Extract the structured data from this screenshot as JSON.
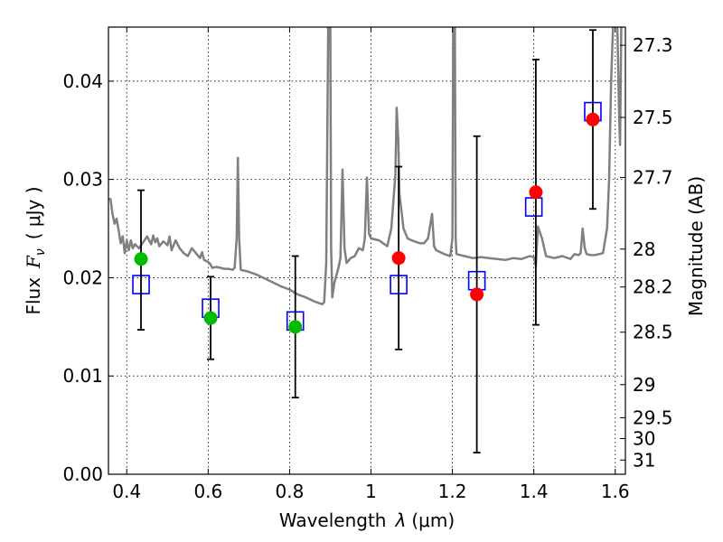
{
  "chart_data": {
    "type": "scatter",
    "xlabel_text": "Wavelength",
    "xlabel_symbol": "λ",
    "xlabel_unit": "(μm)",
    "ylabel_text": "Flux",
    "ylabel_symbol": "F",
    "ylabel_subscript": "ν",
    "ylabel_unit": "( μJy )",
    "y2label": "Magnitude (AB)",
    "xlim": [
      0.355,
      1.625
    ],
    "ylim": [
      0.0,
      0.0455
    ],
    "xticks": [
      0.4,
      0.6,
      0.8,
      1.0,
      1.2,
      1.4,
      1.6
    ],
    "xtick_labels": [
      "0.4",
      "0.6",
      "0.8",
      "1",
      "1.2",
      "1.4",
      "1.6"
    ],
    "yticks": [
      0.0,
      0.01,
      0.02,
      0.03,
      0.04
    ],
    "ytick_labels": [
      "0.00",
      "0.01",
      "0.02",
      "0.03",
      "0.04"
    ],
    "y2ticks": [
      {
        "mag": 27.3,
        "label": "27.3"
      },
      {
        "mag": 27.5,
        "label": "27.5"
      },
      {
        "mag": 27.7,
        "label": "27.7"
      },
      {
        "mag": 28,
        "label": "28"
      },
      {
        "mag": 28.2,
        "label": "28.2"
      },
      {
        "mag": 28.5,
        "label": "28.5"
      },
      {
        "mag": 29,
        "label": "29"
      },
      {
        "mag": 29.5,
        "label": "29.5"
      },
      {
        "mag": 30,
        "label": "30"
      },
      {
        "mag": 31,
        "label": "31"
      }
    ],
    "grid": true,
    "series": [
      {
        "name": "SED model",
        "kind": "line",
        "color": "#808080",
        "points": [
          [
            0.355,
            0.028
          ],
          [
            0.36,
            0.028
          ],
          [
            0.365,
            0.0265
          ],
          [
            0.37,
            0.0255
          ],
          [
            0.375,
            0.026
          ],
          [
            0.38,
            0.0248
          ],
          [
            0.385,
            0.0235
          ],
          [
            0.39,
            0.0242
          ],
          [
            0.395,
            0.0225
          ],
          [
            0.4,
            0.0238
          ],
          [
            0.405,
            0.0228
          ],
          [
            0.41,
            0.0238
          ],
          [
            0.415,
            0.023
          ],
          [
            0.42,
            0.0234
          ],
          [
            0.43,
            0.023
          ],
          [
            0.44,
            0.0236
          ],
          [
            0.45,
            0.0242
          ],
          [
            0.455,
            0.0238
          ],
          [
            0.46,
            0.0234
          ],
          [
            0.465,
            0.0243
          ],
          [
            0.47,
            0.0236
          ],
          [
            0.475,
            0.024
          ],
          [
            0.48,
            0.0232
          ],
          [
            0.49,
            0.0237
          ],
          [
            0.5,
            0.0233
          ],
          [
            0.505,
            0.0242
          ],
          [
            0.51,
            0.0228
          ],
          [
            0.52,
            0.0238
          ],
          [
            0.53,
            0.023
          ],
          [
            0.54,
            0.0225
          ],
          [
            0.55,
            0.0222
          ],
          [
            0.56,
            0.023
          ],
          [
            0.57,
            0.0225
          ],
          [
            0.58,
            0.022
          ],
          [
            0.585,
            0.0226
          ],
          [
            0.59,
            0.0218
          ],
          [
            0.6,
            0.0216
          ],
          [
            0.605,
            0.0214
          ],
          [
            0.61,
            0.021
          ],
          [
            0.62,
            0.0211
          ],
          [
            0.63,
            0.021
          ],
          [
            0.64,
            0.0209
          ],
          [
            0.65,
            0.0209
          ],
          [
            0.66,
            0.0208
          ],
          [
            0.665,
            0.021
          ],
          [
            0.67,
            0.024
          ],
          [
            0.673,
            0.0322
          ],
          [
            0.676,
            0.024
          ],
          [
            0.68,
            0.0208
          ],
          [
            0.7,
            0.0206
          ],
          [
            0.72,
            0.0203
          ],
          [
            0.74,
            0.0199
          ],
          [
            0.76,
            0.0195
          ],
          [
            0.78,
            0.0191
          ],
          [
            0.8,
            0.0188
          ],
          [
            0.82,
            0.0183
          ],
          [
            0.84,
            0.018
          ],
          [
            0.86,
            0.0176
          ],
          [
            0.88,
            0.0173
          ],
          [
            0.885,
            0.0175
          ],
          [
            0.89,
            0.0215
          ],
          [
            0.895,
            0.046
          ],
          [
            0.9,
            0.046
          ],
          [
            0.902,
            0.023
          ],
          [
            0.905,
            0.018
          ],
          [
            0.91,
            0.0195
          ],
          [
            0.92,
            0.021
          ],
          [
            0.925,
            0.022
          ],
          [
            0.93,
            0.031
          ],
          [
            0.935,
            0.023
          ],
          [
            0.94,
            0.0215
          ],
          [
            0.95,
            0.022
          ],
          [
            0.96,
            0.0222
          ],
          [
            0.97,
            0.023
          ],
          [
            0.98,
            0.0228
          ],
          [
            0.985,
            0.024
          ],
          [
            0.99,
            0.0302
          ],
          [
            0.995,
            0.0245
          ],
          [
            1.0,
            0.024
          ],
          [
            1.02,
            0.0238
          ],
          [
            1.04,
            0.0232
          ],
          [
            1.05,
            0.025
          ],
          [
            1.06,
            0.0305
          ],
          [
            1.063,
            0.0373
          ],
          [
            1.067,
            0.034
          ],
          [
            1.07,
            0.0285
          ],
          [
            1.08,
            0.025
          ],
          [
            1.09,
            0.024
          ],
          [
            1.1,
            0.0238
          ],
          [
            1.12,
            0.0235
          ],
          [
            1.13,
            0.0235
          ],
          [
            1.14,
            0.024
          ],
          [
            1.15,
            0.0265
          ],
          [
            1.155,
            0.0232
          ],
          [
            1.16,
            0.0228
          ],
          [
            1.18,
            0.0224
          ],
          [
            1.195,
            0.0222
          ],
          [
            1.2,
            0.024
          ],
          [
            1.202,
            0.046
          ],
          [
            1.206,
            0.046
          ],
          [
            1.208,
            0.024
          ],
          [
            1.21,
            0.0224
          ],
          [
            1.23,
            0.0222
          ],
          [
            1.25,
            0.022
          ],
          [
            1.27,
            0.0221
          ],
          [
            1.29,
            0.022
          ],
          [
            1.31,
            0.0219
          ],
          [
            1.33,
            0.0218
          ],
          [
            1.35,
            0.022
          ],
          [
            1.37,
            0.0219
          ],
          [
            1.39,
            0.0222
          ],
          [
            1.4,
            0.0221
          ],
          [
            1.405,
            0.0212
          ],
          [
            1.41,
            0.0252
          ],
          [
            1.42,
            0.024
          ],
          [
            1.43,
            0.0222
          ],
          [
            1.45,
            0.022
          ],
          [
            1.47,
            0.0222
          ],
          [
            1.49,
            0.0219
          ],
          [
            1.5,
            0.0224
          ],
          [
            1.51,
            0.0223
          ],
          [
            1.515,
            0.0225
          ],
          [
            1.52,
            0.025
          ],
          [
            1.525,
            0.023
          ],
          [
            1.53,
            0.0224
          ],
          [
            1.54,
            0.0223
          ],
          [
            1.55,
            0.0223
          ],
          [
            1.56,
            0.0224
          ],
          [
            1.57,
            0.0225
          ],
          [
            1.58,
            0.025
          ],
          [
            1.585,
            0.03
          ],
          [
            1.59,
            0.04
          ],
          [
            1.595,
            0.046
          ],
          [
            1.605,
            0.046
          ],
          [
            1.61,
            0.036
          ],
          [
            1.612,
            0.0335
          ],
          [
            1.615,
            0.046
          ]
        ]
      },
      {
        "name": "Model photometry",
        "kind": "open-square",
        "color": "#0000ff",
        "points": [
          [
            0.435,
            0.0193
          ],
          [
            0.606,
            0.0169
          ],
          [
            0.814,
            0.0156
          ],
          [
            1.068,
            0.0193
          ],
          [
            1.26,
            0.0197
          ],
          [
            1.4,
            0.0272
          ],
          [
            1.545,
            0.0369
          ]
        ]
      },
      {
        "name": "Measured flux (green)",
        "kind": "filled-circle",
        "color": "#00bb00",
        "points": [
          {
            "x": 0.435,
            "y": 0.0219,
            "ylo": 0.0147,
            "yhi": 0.0289
          },
          {
            "x": 0.606,
            "y": 0.0159,
            "ylo": 0.0117,
            "yhi": 0.0201
          },
          {
            "x": 0.814,
            "y": 0.015,
            "ylo": 0.0078,
            "yhi": 0.0222
          }
        ]
      },
      {
        "name": "Measured flux (red)",
        "kind": "filled-circle",
        "color": "#ff0000",
        "points": [
          {
            "x": 1.068,
            "y": 0.022,
            "ylo": 0.0127,
            "yhi": 0.0313
          },
          {
            "x": 1.26,
            "y": 0.0183,
            "ylo": 0.0022,
            "yhi": 0.0344
          },
          {
            "x": 1.405,
            "y": 0.0287,
            "ylo": 0.0152,
            "yhi": 0.0422
          },
          {
            "x": 1.545,
            "y": 0.0361,
            "ylo": 0.027,
            "yhi": 0.0452
          }
        ]
      }
    ]
  }
}
